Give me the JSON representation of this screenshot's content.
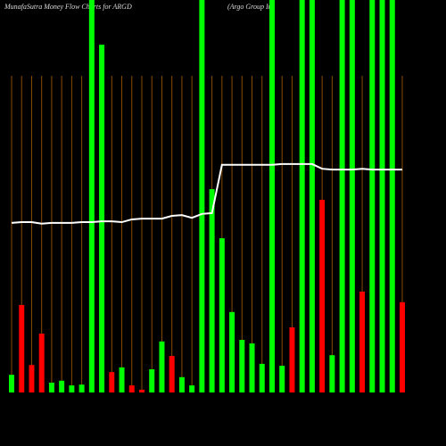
{
  "chart_data": {
    "type": "bar",
    "title": "MunafaSutra  Money Flow  Charts for ARGD",
    "subtitle": "(Argo   Group In",
    "values": [
      4.5,
      22.3,
      7.0,
      15.0,
      2.5,
      3.0,
      1.8,
      2.0,
      100,
      88.6,
      5.2,
      6.4,
      1.8,
      0.7,
      5.9,
      13.0,
      9.3,
      3.9,
      1.8,
      100,
      51.8,
      39.3,
      20.5,
      13.4,
      12.5,
      7.3,
      100,
      6.8,
      16.6,
      100,
      100,
      49.1,
      9.5,
      100,
      100,
      25.7,
      100,
      100,
      100,
      23.0
    ],
    "colors": [
      "#00ff00",
      "#ff0000",
      "#ff0000",
      "#ff0000",
      "#00ff00",
      "#00ff00",
      "#00ff00",
      "#00ff00",
      "#00ff00",
      "#00ff00",
      "#ff0000",
      "#00ff00",
      "#ff0000",
      "#ff0000",
      "#00ff00",
      "#00ff00",
      "#ff0000",
      "#00ff00",
      "#00ff00",
      "#00ff00",
      "#00ff00",
      "#00ff00",
      "#00ff00",
      "#00ff00",
      "#00ff00",
      "#00ff00",
      "#00ff00",
      "#00ff00",
      "#ff0000",
      "#00ff00",
      "#00ff00",
      "#ff0000",
      "#00ff00",
      "#00ff00",
      "#00ff00",
      "#ff0000",
      "#00ff00",
      "#00ff00",
      "#00ff00",
      "#ff0000"
    ],
    "line": {
      "color": "#ffffff",
      "values": [
        43.2,
        43.4,
        43.4,
        43.0,
        43.2,
        43.2,
        43.2,
        43.4,
        43.4,
        43.6,
        43.6,
        43.4,
        44.1,
        44.3,
        44.3,
        44.3,
        45.0,
        45.2,
        44.5,
        45.5,
        45.7,
        58.0,
        58.0,
        58.0,
        58.0,
        58.0,
        58.0,
        58.2,
        58.2,
        58.2,
        58.2,
        57.0,
        56.8,
        56.8,
        56.8,
        57.0,
        56.8,
        56.8,
        56.8,
        56.8
      ]
    },
    "ylim": [
      0,
      100
    ]
  }
}
